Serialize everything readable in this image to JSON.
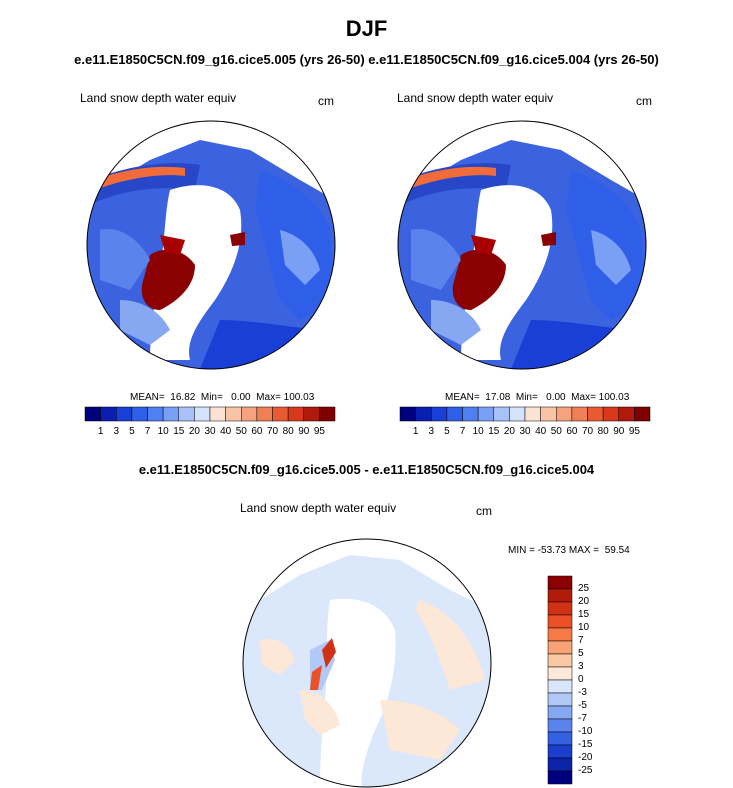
{
  "title": "DJF",
  "subtitle_top": "e.e11.E1850C5CN.f09_g16.cice5.005 (yrs 26-50) e.e11.E1850C5CN.f09_g16.cice5.004 (yrs 26-50)",
  "subtitle_diff": "e.e11.E1850C5CN.f09_g16.cice5.005 - e.e11.E1850C5CN.f09_g16.cice5.004",
  "panels": [
    {
      "variable": "Land snow depth water equiv",
      "units": "cm",
      "stats": "MEAN=  16.82  Min=   0.00  Max= 100.03"
    },
    {
      "variable": "Land snow depth water equiv",
      "units": "cm",
      "stats": "MEAN=  17.08  Min=   0.00  Max= 100.03"
    }
  ],
  "diff_panel": {
    "variable": "Land snow depth water equiv",
    "units": "cm",
    "stats": "MIN = -53.73 MAX =  59.54"
  },
  "colorbar_levels": [
    "1",
    "3",
    "5",
    "7",
    "10",
    "15",
    "20",
    "30",
    "40",
    "50",
    "60",
    "70",
    "80",
    "90",
    "95"
  ],
  "colorbar_colors": [
    "#00007f",
    "#0a1fb0",
    "#1a3fd6",
    "#2f5fe8",
    "#4f7ff0",
    "#7aa0f5",
    "#a8c2f8",
    "#d5e2fb",
    "#fbe3d4",
    "#f8c4a6",
    "#f5a27e",
    "#f17f56",
    "#ea5a30",
    "#d9381a",
    "#b01a0c",
    "#7f0000"
  ],
  "diff_levels": [
    "25",
    "20",
    "15",
    "10",
    "7",
    "5",
    "3",
    "0",
    "-3",
    "-5",
    "-7",
    "-10",
    "-15",
    "-20",
    "-25"
  ],
  "diff_colors": [
    "#8b0000",
    "#b41a0a",
    "#d23214",
    "#ec5024",
    "#f57a48",
    "#f8a276",
    "#fbc8a4",
    "#fde7d6",
    "#d9e6fb",
    "#b2c9f7",
    "#86a8f2",
    "#5a84ec",
    "#3460e2",
    "#1b3fcc",
    "#0c24a8",
    "#00007f"
  ]
}
